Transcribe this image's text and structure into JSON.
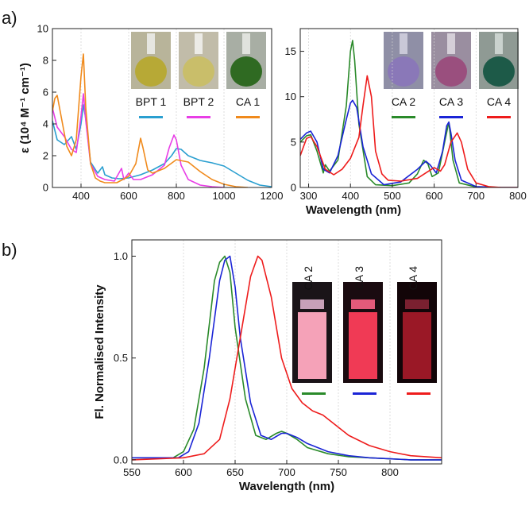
{
  "figure": {
    "panel_a_label": "a)",
    "panel_b_label": "b)"
  },
  "colors": {
    "BPT 1": "#2a9fd0",
    "BPT 2": "#e83ee6",
    "CA 1": "#f08a1c",
    "CA 2": "#2a8a2a",
    "CA 3": "#1a24d6",
    "CA 4": "#ee1c1c"
  },
  "chart_data": [
    {
      "id": "a-left",
      "type": "line",
      "xlabel": "",
      "ylabel": "ε (10⁴ M⁻¹ cm⁻¹)",
      "xlim": [
        280,
        1200
      ],
      "ylim": [
        0,
        10
      ],
      "xticks": [
        400,
        600,
        800,
        1000,
        1200
      ],
      "yticks": [
        0,
        2,
        4,
        6,
        8,
        10
      ],
      "grid": "vertical",
      "legend": [
        "BPT 1",
        "BPT 2",
        "CA 1"
      ],
      "series": [
        {
          "name": "BPT 1",
          "x": [
            280,
            300,
            330,
            360,
            380,
            400,
            410,
            420,
            440,
            470,
            490,
            500,
            530,
            560,
            600,
            650,
            700,
            750,
            780,
            800,
            820,
            850,
            900,
            950,
            1000,
            1050,
            1100,
            1150,
            1200
          ],
          "y": [
            4.2,
            3.0,
            2.7,
            3.2,
            2.4,
            4.0,
            5.2,
            4.3,
            1.6,
            0.9,
            1.3,
            0.8,
            0.6,
            0.55,
            0.6,
            0.8,
            1.1,
            1.5,
            2.0,
            2.45,
            2.4,
            2.0,
            1.7,
            1.55,
            1.35,
            0.9,
            0.45,
            0.15,
            0.05
          ]
        },
        {
          "name": "BPT 2",
          "x": [
            280,
            300,
            330,
            360,
            380,
            400,
            410,
            420,
            440,
            470,
            500,
            540,
            570,
            580,
            600,
            620,
            650,
            700,
            750,
            770,
            790,
            800,
            820,
            850,
            900,
            950,
            1000
          ],
          "y": [
            5.0,
            3.8,
            3.2,
            2.4,
            2.2,
            4.5,
            5.9,
            4.2,
            1.5,
            0.7,
            0.5,
            0.4,
            1.2,
            0.5,
            0.9,
            0.5,
            0.5,
            0.8,
            1.4,
            2.5,
            3.3,
            3.0,
            1.4,
            0.5,
            0.15,
            0.05,
            0.0
          ]
        },
        {
          "name": "CA 1",
          "x": [
            280,
            290,
            300,
            320,
            340,
            360,
            380,
            400,
            410,
            420,
            440,
            460,
            480,
            500,
            550,
            600,
            630,
            650,
            660,
            680,
            700,
            750,
            800,
            850,
            900,
            950,
            1000,
            1050,
            1100
          ],
          "y": [
            4.8,
            5.6,
            5.8,
            4.2,
            2.6,
            2.0,
            3.0,
            7.0,
            8.4,
            5.0,
            1.5,
            0.6,
            0.4,
            0.3,
            0.3,
            0.7,
            1.5,
            3.1,
            2.5,
            1.1,
            0.9,
            1.2,
            1.75,
            1.6,
            1.0,
            0.5,
            0.2,
            0.05,
            0.0
          ]
        }
      ]
    },
    {
      "id": "a-right",
      "type": "line",
      "xlabel": "Wavelength (nm)",
      "ylabel": "",
      "xlim": [
        280,
        800
      ],
      "ylim": [
        0,
        17.5
      ],
      "xticks": [
        300,
        400,
        500,
        600,
        700,
        800
      ],
      "yticks": [
        0,
        5,
        10,
        15
      ],
      "grid": "vertical",
      "legend": [
        "CA 2",
        "CA 3",
        "CA 4"
      ],
      "series": [
        {
          "name": "CA 2",
          "x": [
            280,
            295,
            305,
            320,
            335,
            340,
            350,
            370,
            390,
            400,
            405,
            410,
            420,
            440,
            460,
            500,
            540,
            560,
            575,
            585,
            595,
            610,
            625,
            635,
            645,
            660,
            700,
            760,
            800
          ],
          "y": [
            5.0,
            5.7,
            5.8,
            4.0,
            1.6,
            2.5,
            1.8,
            3.0,
            9.0,
            15.0,
            16.2,
            14.0,
            7.0,
            1.2,
            0.3,
            0.2,
            0.5,
            1.5,
            3.0,
            2.6,
            1.2,
            1.6,
            5.0,
            7.2,
            3.0,
            0.5,
            0.05,
            0.0,
            0.0
          ]
        },
        {
          "name": "CA 3",
          "x": [
            280,
            295,
            305,
            320,
            335,
            350,
            370,
            390,
            400,
            405,
            415,
            430,
            450,
            480,
            520,
            560,
            580,
            590,
            605,
            620,
            630,
            635,
            640,
            650,
            665,
            700,
            760,
            800
          ],
          "y": [
            5.3,
            6.0,
            6.2,
            5.0,
            2.0,
            1.6,
            3.5,
            7.5,
            9.3,
            9.6,
            8.8,
            4.5,
            1.5,
            0.3,
            0.6,
            2.0,
            2.9,
            2.5,
            1.6,
            4.0,
            6.8,
            7.2,
            6.0,
            3.0,
            0.8,
            0.1,
            0.0,
            0.0
          ]
        },
        {
          "name": "CA 4",
          "x": [
            280,
            295,
            305,
            320,
            340,
            360,
            380,
            400,
            420,
            430,
            440,
            450,
            460,
            475,
            490,
            520,
            560,
            580,
            600,
            615,
            625,
            640,
            655,
            665,
            680,
            700,
            730,
            760,
            800
          ],
          "y": [
            3.5,
            5.4,
            5.6,
            4.5,
            2.0,
            1.4,
            2.0,
            3.2,
            5.5,
            9.0,
            12.3,
            10.0,
            4.0,
            1.5,
            0.8,
            0.7,
            1.0,
            1.6,
            2.2,
            1.8,
            2.5,
            5.0,
            6.0,
            5.0,
            2.0,
            0.5,
            0.1,
            0.0,
            0.0
          ]
        }
      ]
    },
    {
      "id": "b",
      "type": "line",
      "xlabel": "Wavelength (nm)",
      "ylabel": "Fl. Normalised Intensity",
      "xlim": [
        550,
        850
      ],
      "ylim": [
        -0.02,
        1.08
      ],
      "xticks": [
        550,
        600,
        650,
        700,
        750,
        800
      ],
      "yticks": [
        0.0,
        0.5,
        1.0
      ],
      "grid": "vertical",
      "legend": [
        "CA 2",
        "CA 3",
        "CA 4"
      ],
      "series": [
        {
          "name": "CA 2",
          "x": [
            550,
            590,
            600,
            610,
            620,
            630,
            635,
            640,
            645,
            650,
            660,
            670,
            680,
            690,
            695,
            700,
            710,
            720,
            740,
            760,
            780,
            800,
            820,
            850
          ],
          "y": [
            0.01,
            0.01,
            0.04,
            0.15,
            0.45,
            0.88,
            0.97,
            1.0,
            0.92,
            0.65,
            0.3,
            0.12,
            0.1,
            0.13,
            0.14,
            0.13,
            0.1,
            0.06,
            0.03,
            0.015,
            0.01,
            0.005,
            0.0,
            0.0
          ]
        },
        {
          "name": "CA 3",
          "x": [
            550,
            595,
            605,
            615,
            625,
            635,
            640,
            645,
            650,
            655,
            665,
            675,
            685,
            695,
            700,
            710,
            720,
            740,
            760,
            780,
            800,
            820,
            850
          ],
          "y": [
            0.01,
            0.01,
            0.04,
            0.18,
            0.5,
            0.88,
            0.98,
            1.0,
            0.85,
            0.6,
            0.28,
            0.12,
            0.1,
            0.13,
            0.13,
            0.11,
            0.08,
            0.04,
            0.02,
            0.01,
            0.005,
            0.0,
            0.0
          ]
        },
        {
          "name": "CA 4",
          "x": [
            550,
            600,
            620,
            635,
            645,
            655,
            665,
            672,
            676,
            685,
            695,
            705,
            715,
            725,
            735,
            745,
            760,
            780,
            800,
            820,
            850
          ],
          "y": [
            0.0,
            0.01,
            0.03,
            0.1,
            0.3,
            0.6,
            0.9,
            1.0,
            0.98,
            0.8,
            0.5,
            0.35,
            0.28,
            0.24,
            0.22,
            0.18,
            0.12,
            0.07,
            0.04,
            0.02,
            0.01
          ]
        }
      ]
    }
  ]
}
